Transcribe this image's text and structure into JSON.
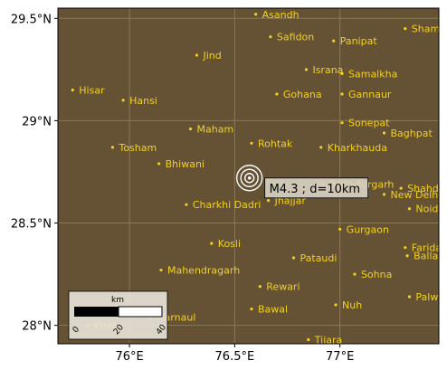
{
  "map": {
    "lon_range": [
      75.66,
      77.47
    ],
    "lat_range": [
      27.91,
      29.55
    ],
    "colors": {
      "background": "#655134",
      "grid": "#8a7a55",
      "city": "#f2d21e",
      "event_ring": "#ffffff"
    },
    "x_ticks": [
      {
        "value": 76.0,
        "label": "76°E"
      },
      {
        "value": 76.5,
        "label": "76.5°E"
      },
      {
        "value": 77.0,
        "label": "77°E"
      }
    ],
    "y_ticks": [
      {
        "value": 29.5,
        "label": "29.5°N"
      },
      {
        "value": 29.0,
        "label": "29°N"
      },
      {
        "value": 28.5,
        "label": "28.5°N"
      },
      {
        "value": 28.0,
        "label": "28°N"
      }
    ],
    "cities": [
      {
        "name": "Asandh",
        "lon": 76.6,
        "lat": 29.52
      },
      {
        "name": "Safidon",
        "lon": 76.67,
        "lat": 29.41
      },
      {
        "name": "Panipat",
        "lon": 76.97,
        "lat": 29.39
      },
      {
        "name": "Shamli",
        "lon": 77.31,
        "lat": 29.45
      },
      {
        "name": "Jind",
        "lon": 76.32,
        "lat": 29.32
      },
      {
        "name": "Israna",
        "lon": 76.84,
        "lat": 29.25
      },
      {
        "name": "Samalkha",
        "lon": 77.01,
        "lat": 29.23
      },
      {
        "name": "Hisar",
        "lon": 75.73,
        "lat": 29.15
      },
      {
        "name": "Hansi",
        "lon": 75.97,
        "lat": 29.1
      },
      {
        "name": "Gohana",
        "lon": 76.7,
        "lat": 29.13
      },
      {
        "name": "Gannaur",
        "lon": 77.01,
        "lat": 29.13
      },
      {
        "name": "Sonepat",
        "lon": 77.01,
        "lat": 28.99
      },
      {
        "name": "Maham",
        "lon": 76.29,
        "lat": 28.96
      },
      {
        "name": "Baghpat",
        "lon": 77.21,
        "lat": 28.94
      },
      {
        "name": "Rohtak",
        "lon": 76.58,
        "lat": 28.89
      },
      {
        "name": "Kharkhauda",
        "lon": 76.91,
        "lat": 28.87
      },
      {
        "name": "Tosham",
        "lon": 75.92,
        "lat": 28.87
      },
      {
        "name": "Bhiwani",
        "lon": 76.14,
        "lat": 28.79
      },
      {
        "name": "Bahadurgarh",
        "lon": 76.92,
        "lat": 28.69
      },
      {
        "name": "New Delhi",
        "lon": 77.21,
        "lat": 28.64
      },
      {
        "name": "Shahdara",
        "lon": 77.29,
        "lat": 28.67
      },
      {
        "name": "Charkhi Dadri",
        "lon": 76.27,
        "lat": 28.59
      },
      {
        "name": "Jhajjar",
        "lon": 76.66,
        "lat": 28.61
      },
      {
        "name": "Noida",
        "lon": 77.33,
        "lat": 28.57
      },
      {
        "name": "Gurgaon",
        "lon": 77.0,
        "lat": 28.47
      },
      {
        "name": "Kosli",
        "lon": 76.39,
        "lat": 28.4
      },
      {
        "name": "Faridabad",
        "lon": 77.31,
        "lat": 28.38
      },
      {
        "name": "Pataudi",
        "lon": 76.78,
        "lat": 28.33
      },
      {
        "name": "Ballabgarh",
        "lon": 77.32,
        "lat": 28.34
      },
      {
        "name": "Mahendragarh",
        "lon": 76.15,
        "lat": 28.27
      },
      {
        "name": "Sohna",
        "lon": 77.07,
        "lat": 28.25
      },
      {
        "name": "Rewari",
        "lon": 76.62,
        "lat": 28.19
      },
      {
        "name": "Palwal",
        "lon": 77.33,
        "lat": 28.14
      },
      {
        "name": "Nuh",
        "lon": 76.98,
        "lat": 28.1
      },
      {
        "name": "Bawal",
        "lon": 76.58,
        "lat": 28.08
      },
      {
        "name": "Narnaul",
        "lon": 76.1,
        "lat": 28.04
      },
      {
        "name": "Khetri",
        "lon": 75.8,
        "lat": 28.0
      },
      {
        "name": "Tijara",
        "lon": 76.85,
        "lat": 27.93
      }
    ],
    "event": {
      "lon": 76.57,
      "lat": 28.72,
      "label": "M4.3 ; d=10km"
    },
    "scale_bar": {
      "unit": "km",
      "ticks": [
        "0",
        "20",
        "40"
      ]
    }
  }
}
